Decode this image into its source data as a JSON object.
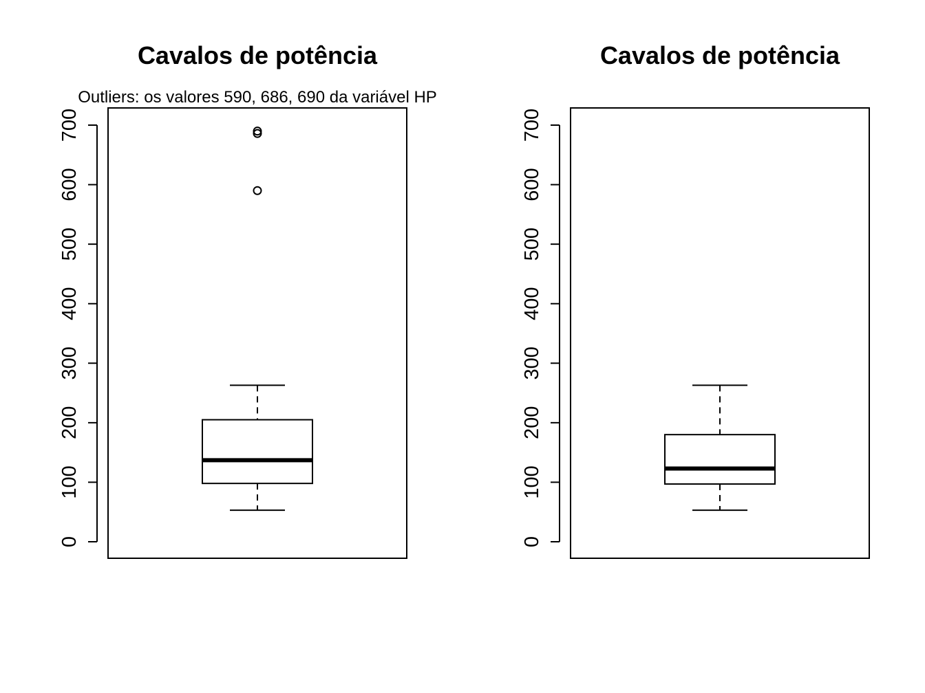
{
  "chart_data": [
    {
      "type": "boxplot",
      "title": "Cavalos de potência",
      "annotation": "Outliers: os valores 590, 686, 690 da variável HP",
      "ylim": [
        0,
        700
      ],
      "yticks": [
        "0",
        "100",
        "200",
        "300",
        "400",
        "500",
        "600",
        "700"
      ],
      "stats": {
        "lower_whisker": 53,
        "q1": 98,
        "median": 137,
        "q3": 205,
        "upper_whisker": 263
      },
      "outliers": [
        590,
        686,
        690
      ],
      "grid": false
    },
    {
      "type": "boxplot",
      "title": "Cavalos de potência",
      "annotation": "",
      "ylim": [
        0,
        700
      ],
      "yticks": [
        "0",
        "100",
        "200",
        "300",
        "400",
        "500",
        "600",
        "700"
      ],
      "stats": {
        "lower_whisker": 53,
        "q1": 97,
        "median": 123,
        "q3": 180,
        "upper_whisker": 263
      },
      "outliers": [],
      "grid": false
    }
  ]
}
